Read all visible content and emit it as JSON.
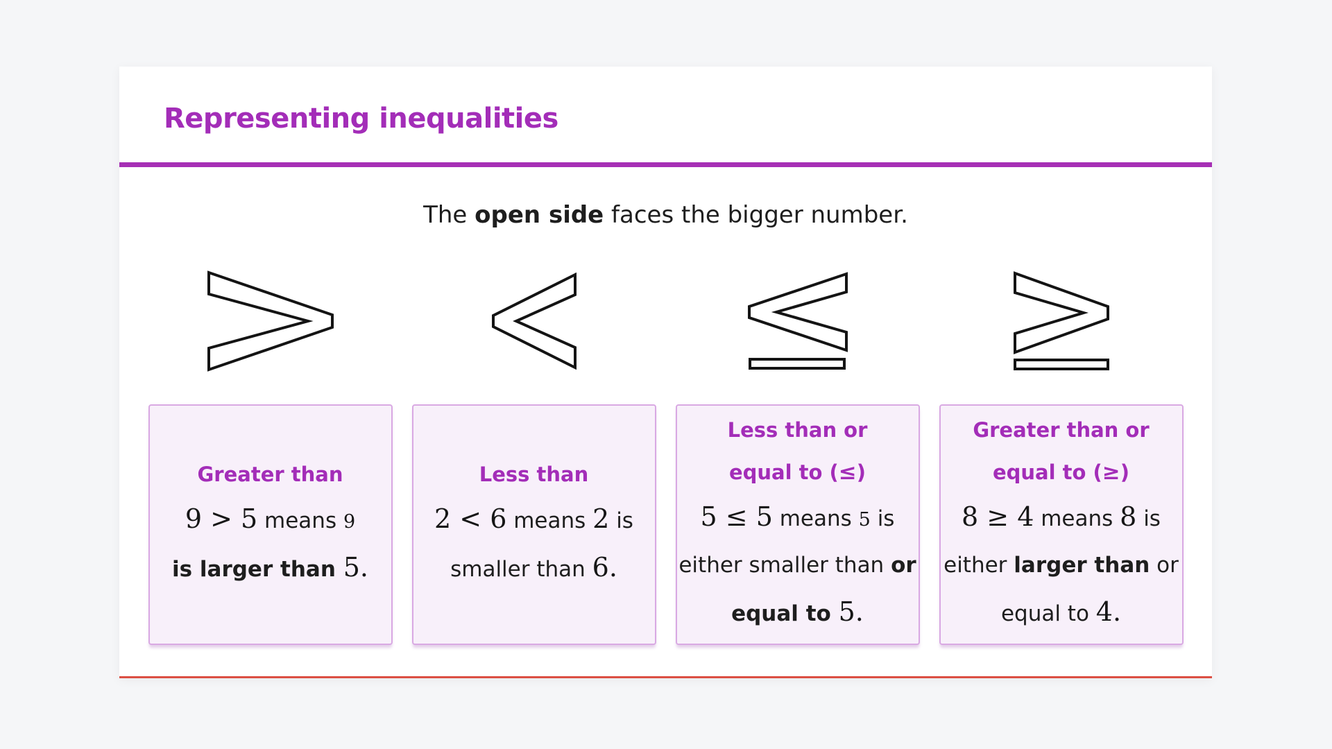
{
  "title": "Representing inequalities",
  "intro_segments": [
    {
      "t": "The ",
      "s": "p"
    },
    {
      "t": "open side",
      "s": "b"
    },
    {
      "t": " faces the bigger number.",
      "s": "p"
    }
  ],
  "colors": {
    "accent_purple": "#a32db8",
    "divider_purple": "#a62fb5",
    "card_bottom_line_red": "#dc4f43",
    "box_background": "#f8f0fa",
    "box_border": "#d9a9e3",
    "body_text": "#1e1e1e",
    "page_background": "#f5f6f8",
    "symbol_stroke": "#141414"
  },
  "columns": [
    {
      "symbol": "greater-than-symbol",
      "box": {
        "title_lines": [
          [
            {
              "t": "Greater than",
              "s": "t"
            }
          ]
        ],
        "body_lines": [
          [
            {
              "t": "9 > 5",
              "s": "m"
            },
            {
              "t": " means ",
              "s": "p"
            },
            {
              "t": "9",
              "s": "ms"
            }
          ],
          [
            {
              "t": "is larger than ",
              "s": "b"
            },
            {
              "t": "5.",
              "s": "m"
            }
          ]
        ]
      }
    },
    {
      "symbol": "less-than-symbol",
      "box": {
        "title_lines": [
          [
            {
              "t": "Less than",
              "s": "t"
            }
          ]
        ],
        "body_lines": [
          [
            {
              "t": "2 < 6",
              "s": "m"
            },
            {
              "t": " means ",
              "s": "p"
            },
            {
              "t": "2",
              "s": "m"
            },
            {
              "t": " is",
              "s": "p"
            }
          ],
          [
            {
              "t": "smaller than ",
              "s": "p"
            },
            {
              "t": "6.",
              "s": "m"
            }
          ]
        ]
      }
    },
    {
      "symbol": "less-than-or-equal-symbol",
      "box": {
        "title_lines": [
          [
            {
              "t": "Less than or",
              "s": "t"
            }
          ],
          [
            {
              "t": "equal to (",
              "s": "t"
            },
            {
              "t": "≤",
              "s": "tm"
            },
            {
              "t": ")",
              "s": "t"
            }
          ]
        ],
        "body_lines": [
          [
            {
              "t": "5 ≤ 5",
              "s": "m"
            },
            {
              "t": " means ",
              "s": "p"
            },
            {
              "t": "5",
              "s": "ms"
            },
            {
              "t": " is",
              "s": "p"
            }
          ],
          [
            {
              "t": "either smaller than ",
              "s": "p"
            },
            {
              "t": "or",
              "s": "b"
            }
          ],
          [
            {
              "t": "equal to ",
              "s": "b"
            },
            {
              "t": "5.",
              "s": "m"
            }
          ]
        ]
      }
    },
    {
      "symbol": "greater-than-or-equal-symbol",
      "box": {
        "title_lines": [
          [
            {
              "t": "Greater than or",
              "s": "t"
            }
          ],
          [
            {
              "t": "equal to (",
              "s": "t"
            },
            {
              "t": "≥",
              "s": "tm"
            },
            {
              "t": ")",
              "s": "t"
            }
          ]
        ],
        "body_lines": [
          [
            {
              "t": "8 ≥ 4",
              "s": "m"
            },
            {
              "t": " means ",
              "s": "p"
            },
            {
              "t": "8",
              "s": "m"
            },
            {
              "t": " is",
              "s": "p"
            }
          ],
          [
            {
              "t": "either ",
              "s": "p"
            },
            {
              "t": "larger than",
              "s": "b"
            },
            {
              "t": " or",
              "s": "p"
            }
          ],
          [
            {
              "t": "equal to ",
              "s": "p"
            },
            {
              "t": "4.",
              "s": "m"
            }
          ]
        ]
      }
    }
  ]
}
